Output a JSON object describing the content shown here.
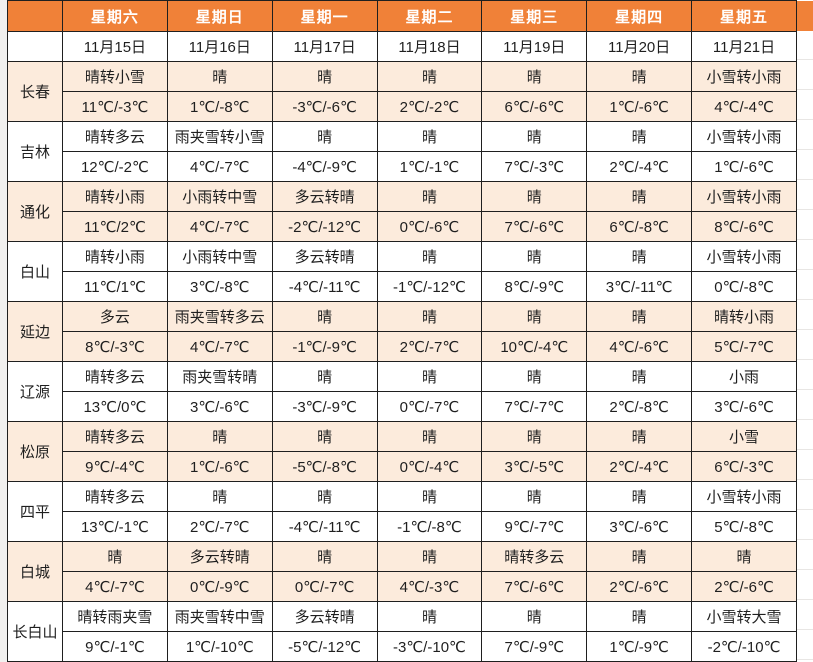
{
  "table": {
    "day_headers": [
      "星期六",
      "星期日",
      "星期一",
      "星期二",
      "星期三",
      "星期四",
      "星期五"
    ],
    "dates": [
      "11月15日",
      "11月16日",
      "11月17日",
      "11月18日",
      "11月19日",
      "11月20日",
      "11月21日"
    ],
    "cities": [
      {
        "name": "长春",
        "weather": [
          "晴转小雪",
          "晴",
          "晴",
          "晴",
          "晴",
          "晴",
          "小雪转小雨"
        ],
        "temps": [
          "11℃/-3℃",
          "1℃/-8℃",
          "-3℃/-6℃",
          "2℃/-2℃",
          "6℃/-6℃",
          "1℃/-6℃",
          "4℃/-4℃"
        ]
      },
      {
        "name": "吉林",
        "weather": [
          "晴转多云",
          "雨夹雪转小雪",
          "晴",
          "晴",
          "晴",
          "晴",
          "小雪转小雨"
        ],
        "temps": [
          "12℃/-2℃",
          "4℃/-7℃",
          "-4℃/-9℃",
          "1℃/-1℃",
          "7℃/-3℃",
          "2℃/-4℃",
          "1℃/-6℃"
        ]
      },
      {
        "name": "通化",
        "weather": [
          "晴转小雨",
          "小雨转中雪",
          "多云转晴",
          "晴",
          "晴",
          "晴",
          "小雪转小雨"
        ],
        "temps": [
          "11℃/2℃",
          "4℃/-7℃",
          "-2℃/-12℃",
          "0℃/-6℃",
          "7℃/-6℃",
          "6℃/-8℃",
          "8℃/-6℃"
        ]
      },
      {
        "name": "白山",
        "weather": [
          "晴转小雨",
          "小雨转中雪",
          "多云转晴",
          "晴",
          "晴",
          "晴",
          "小雪转小雨"
        ],
        "temps": [
          "11℃/1℃",
          "3℃/-8℃",
          "-4℃/-11℃",
          "-1℃/-12℃",
          "8℃/-9℃",
          "3℃/-11℃",
          "0℃/-8℃"
        ]
      },
      {
        "name": "延边",
        "weather": [
          "多云",
          "雨夹雪转多云",
          "晴",
          "晴",
          "晴",
          "晴",
          "晴转小雨"
        ],
        "temps": [
          "8℃/-3℃",
          "4℃/-7℃",
          "-1℃/-9℃",
          "2℃/-7℃",
          "10℃/-4℃",
          "4℃/-6℃",
          "5℃/-7℃"
        ]
      },
      {
        "name": "辽源",
        "weather": [
          "晴转多云",
          "雨夹雪转晴",
          "晴",
          "晴",
          "晴",
          "晴",
          "小雨"
        ],
        "temps": [
          "13℃/0℃",
          "3℃/-6℃",
          "-3℃/-9℃",
          "0℃/-7℃",
          "7℃/-7℃",
          "2℃/-8℃",
          "3℃/-6℃"
        ]
      },
      {
        "name": "松原",
        "weather": [
          "晴转多云",
          "晴",
          "晴",
          "晴",
          "晴",
          "晴",
          "小雪"
        ],
        "temps": [
          "9℃/-4℃",
          "1℃/-6℃",
          "-5℃/-8℃",
          "0℃/-4℃",
          "3℃/-5℃",
          "2℃/-4℃",
          "6℃/-3℃"
        ]
      },
      {
        "name": "四平",
        "weather": [
          "晴转多云",
          "晴",
          "晴",
          "晴",
          "晴",
          "晴",
          "小雪转小雨"
        ],
        "temps": [
          "13℃/-1℃",
          "2℃/-7℃",
          "-4℃/-11℃",
          "-1℃/-8℃",
          "9℃/-7℃",
          "3℃/-6℃",
          "5℃/-8℃"
        ]
      },
      {
        "name": "白城",
        "weather": [
          "晴",
          "多云转晴",
          "晴",
          "晴",
          "晴转多云",
          "晴",
          "晴"
        ],
        "temps": [
          "4℃/-7℃",
          "0℃/-9℃",
          "0℃/-7℃",
          "4℃/-3℃",
          "7℃/-6℃",
          "2℃/-6℃",
          "2℃/-6℃"
        ]
      },
      {
        "name": "长白山",
        "weather": [
          "晴转雨夹雪",
          "雨夹雪转中雪",
          "多云转晴",
          "晴",
          "晴",
          "晴",
          "小雪转大雪"
        ],
        "temps": [
          "9℃/-1℃",
          "1℃/-10℃",
          "-5℃/-12℃",
          "-3℃/-10℃",
          "7℃/-9℃",
          "1℃/-9℃",
          "-2℃/-10℃"
        ]
      }
    ]
  },
  "colors": {
    "header_bg": "#F08138",
    "header_text": "#FFFFFF",
    "row_alt_bg": "#FCEBDC",
    "row_bg": "#FFFFFF",
    "border": "#1F1F1F",
    "text": "#1F1F1F"
  }
}
